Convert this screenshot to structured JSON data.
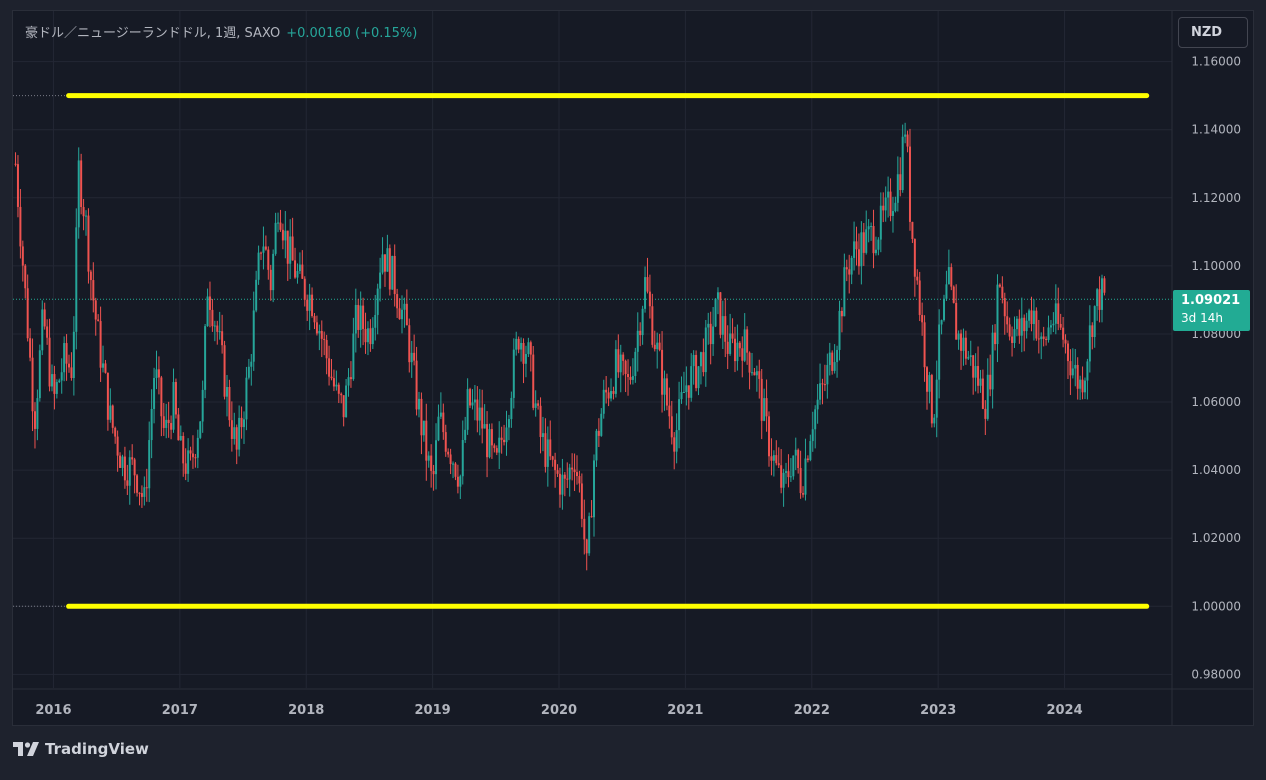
{
  "legend": {
    "symbol": "豪ドル／ニュージーランドドル, 1週, SAXO",
    "change": "+0.00160 (+0.15%)"
  },
  "currency_button": "NZD",
  "last_price": {
    "value": "1.09021",
    "countdown": "3d 14h"
  },
  "brand": "TradingView",
  "colors": {
    "up": "#26a69a",
    "down": "#ef5350",
    "grid": "#232734",
    "support_resistance": "#ffff00",
    "price_tag": "#22ab94"
  },
  "chart_data": {
    "type": "candlestick",
    "y_axis_ticks": [
      "1.16000",
      "1.14000",
      "1.12000",
      "1.10000",
      "1.08000",
      "1.06000",
      "1.04000",
      "1.02000",
      "1.00000",
      "0.98000"
    ],
    "x_axis_ticks": [
      "2016",
      "2017",
      "2018",
      "2019",
      "2020",
      "2021",
      "2022",
      "2023",
      "2024"
    ],
    "ylim": [
      0.976,
      1.164
    ],
    "xlim": [
      2015.68,
      2024.85
    ],
    "grid": true,
    "current_price": 1.09021,
    "horizontal_lines": [
      {
        "price": 1.15,
        "from": 2016.12,
        "to": 2024.65
      },
      {
        "price": 1.0,
        "from": 2016.12,
        "to": 2024.65
      }
    ],
    "anchors": [
      [
        2015.7,
        1.13
      ],
      [
        2015.78,
        1.09
      ],
      [
        2015.85,
        1.055
      ],
      [
        2015.92,
        1.085
      ],
      [
        2016.0,
        1.06
      ],
      [
        2016.08,
        1.072
      ],
      [
        2016.15,
        1.07
      ],
      [
        2016.2,
        1.128
      ],
      [
        2016.25,
        1.115
      ],
      [
        2016.3,
        1.095
      ],
      [
        2016.35,
        1.08
      ],
      [
        2016.45,
        1.055
      ],
      [
        2016.55,
        1.042
      ],
      [
        2016.65,
        1.04
      ],
      [
        2016.72,
        1.03
      ],
      [
        2016.8,
        1.07
      ],
      [
        2016.88,
        1.05
      ],
      [
        2016.95,
        1.06
      ],
      [
        2017.0,
        1.045
      ],
      [
        2017.08,
        1.04
      ],
      [
        2017.18,
        1.06
      ],
      [
        2017.22,
        1.095
      ],
      [
        2017.3,
        1.08
      ],
      [
        2017.38,
        1.06
      ],
      [
        2017.45,
        1.045
      ],
      [
        2017.55,
        1.07
      ],
      [
        2017.65,
        1.11
      ],
      [
        2017.72,
        1.095
      ],
      [
        2017.78,
        1.12
      ],
      [
        2017.85,
        1.105
      ],
      [
        2017.95,
        1.095
      ],
      [
        2018.05,
        1.09
      ],
      [
        2018.15,
        1.075
      ],
      [
        2018.25,
        1.06
      ],
      [
        2018.3,
        1.058
      ],
      [
        2018.4,
        1.085
      ],
      [
        2018.5,
        1.08
      ],
      [
        2018.6,
        1.105
      ],
      [
        2018.7,
        1.095
      ],
      [
        2018.8,
        1.08
      ],
      [
        2018.88,
        1.06
      ],
      [
        2018.95,
        1.045
      ],
      [
        2019.0,
        1.035
      ],
      [
        2019.05,
        1.055
      ],
      [
        2019.15,
        1.045
      ],
      [
        2019.22,
        1.038
      ],
      [
        2019.28,
        1.06
      ],
      [
        2019.38,
        1.055
      ],
      [
        2019.5,
        1.04
      ],
      [
        2019.6,
        1.06
      ],
      [
        2019.68,
        1.08
      ],
      [
        2019.75,
        1.075
      ],
      [
        2019.85,
        1.05
      ],
      [
        2019.95,
        1.04
      ],
      [
        2020.05,
        1.035
      ],
      [
        2020.12,
        1.045
      ],
      [
        2020.18,
        1.03
      ],
      [
        2020.22,
        1.01
      ],
      [
        2020.28,
        1.045
      ],
      [
        2020.35,
        1.06
      ],
      [
        2020.45,
        1.07
      ],
      [
        2020.55,
        1.065
      ],
      [
        2020.62,
        1.08
      ],
      [
        2020.68,
        1.095
      ],
      [
        2020.75,
        1.08
      ],
      [
        2020.85,
        1.06
      ],
      [
        2020.92,
        1.05
      ],
      [
        2021.0,
        1.065
      ],
      [
        2021.1,
        1.07
      ],
      [
        2021.2,
        1.08
      ],
      [
        2021.25,
        1.088
      ],
      [
        2021.35,
        1.075
      ],
      [
        2021.45,
        1.078
      ],
      [
        2021.55,
        1.07
      ],
      [
        2021.65,
        1.05
      ],
      [
        2021.72,
        1.04
      ],
      [
        2021.78,
        1.034
      ],
      [
        2021.85,
        1.045
      ],
      [
        2021.92,
        1.036
      ],
      [
        2022.0,
        1.055
      ],
      [
        2022.1,
        1.065
      ],
      [
        2022.2,
        1.08
      ],
      [
        2022.28,
        1.1
      ],
      [
        2022.35,
        1.105
      ],
      [
        2022.45,
        1.108
      ],
      [
        2022.55,
        1.112
      ],
      [
        2022.62,
        1.118
      ],
      [
        2022.7,
        1.128
      ],
      [
        2022.74,
        1.142
      ],
      [
        2022.78,
        1.115
      ],
      [
        2022.85,
        1.09
      ],
      [
        2022.92,
        1.065
      ],
      [
        2022.96,
        1.055
      ],
      [
        2023.0,
        1.075
      ],
      [
        2023.08,
        1.095
      ],
      [
        2023.15,
        1.08
      ],
      [
        2023.22,
        1.075
      ],
      [
        2023.3,
        1.068
      ],
      [
        2023.38,
        1.06
      ],
      [
        2023.44,
        1.078
      ],
      [
        2023.48,
        1.098
      ],
      [
        2023.55,
        1.083
      ],
      [
        2023.65,
        1.08
      ],
      [
        2023.75,
        1.088
      ],
      [
        2023.82,
        1.075
      ],
      [
        2023.9,
        1.085
      ],
      [
        2023.98,
        1.08
      ],
      [
        2024.05,
        1.072
      ],
      [
        2024.12,
        1.065
      ],
      [
        2024.16,
        1.07
      ],
      [
        2024.22,
        1.085
      ],
      [
        2024.28,
        1.092
      ],
      [
        2024.32,
        1.0902
      ]
    ]
  }
}
